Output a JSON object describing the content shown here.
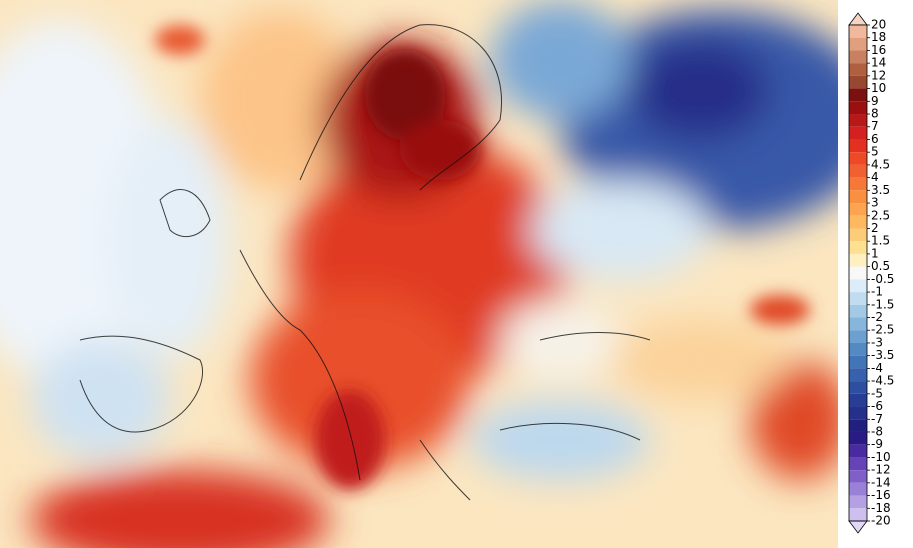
{
  "colorbar": {
    "ticks": [
      20,
      18,
      16,
      14,
      12,
      10,
      9,
      8,
      7,
      6,
      5,
      4.5,
      4,
      3.5,
      3,
      2.5,
      2,
      1.5,
      1,
      0.5,
      -0.5,
      -1,
      -1.5,
      -2,
      -2.5,
      -3,
      -3.5,
      -4,
      -4.5,
      -5,
      -6,
      -7,
      -8,
      -9,
      -10,
      -12,
      -14,
      -16,
      -18,
      -20
    ],
    "colors": [
      "#f6d4c4",
      "#f0b89c",
      "#e0a080",
      "#c88060",
      "#b06040",
      "#984830",
      "#7a1010",
      "#9a1010",
      "#b81818",
      "#d42020",
      "#e43020",
      "#ee4a28",
      "#f06030",
      "#f57838",
      "#f89040",
      "#fca450",
      "#fdb860",
      "#fdcc78",
      "#fde090",
      "#fef0c0",
      "#f8f8f8",
      "#dcecf8",
      "#c0ddf0",
      "#a2cae6",
      "#86b6dc",
      "#6ca0d0",
      "#548ac4",
      "#4274b8",
      "#3860ac",
      "#2e4ea0",
      "#283e96",
      "#24308a",
      "#22207e",
      "#2a1a86",
      "#4a2aa0",
      "#6644b8",
      "#8060c8",
      "#9a80d6",
      "#b4a0e2",
      "#cec0ee",
      "#e0d8f6"
    ]
  }
}
